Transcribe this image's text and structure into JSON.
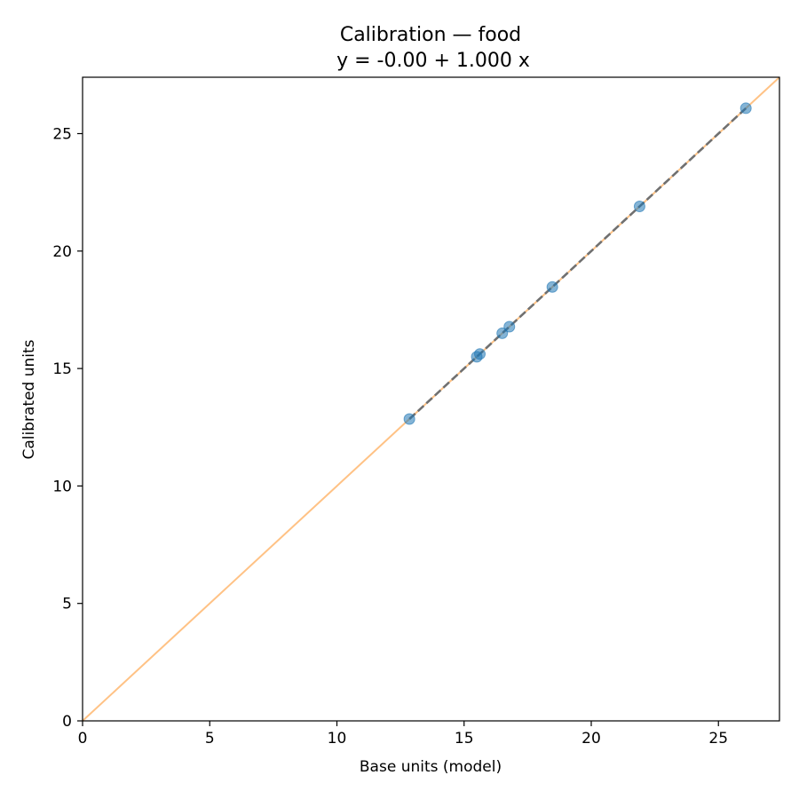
{
  "chart_data": {
    "type": "scatter",
    "title": "Calibration — food",
    "subtitle": "y = -0.00 + 1.000 x",
    "xlabel": "Base units (model)",
    "ylabel": "Calibrated units",
    "xlim": [
      0,
      27.4
    ],
    "ylim": [
      0,
      27.4
    ],
    "xticks": [
      0,
      5,
      10,
      15,
      20,
      25
    ],
    "yticks": [
      0,
      5,
      10,
      15,
      20,
      25
    ],
    "grid": false,
    "series": [
      {
        "kind": "points",
        "color": "#1f77b4",
        "x": [
          12.85,
          15.5,
          15.62,
          16.5,
          16.78,
          18.47,
          21.9,
          26.08
        ],
        "y": [
          12.85,
          15.5,
          15.62,
          16.5,
          16.78,
          18.47,
          21.9,
          26.08
        ]
      },
      {
        "kind": "identity-line",
        "color": "#ffbb78",
        "x": [
          0,
          27.4
        ],
        "y": [
          0,
          27.4
        ]
      },
      {
        "kind": "fit-line",
        "color": "#707070",
        "x": [
          12.85,
          26.08
        ],
        "y": [
          12.85,
          26.08
        ]
      }
    ]
  }
}
